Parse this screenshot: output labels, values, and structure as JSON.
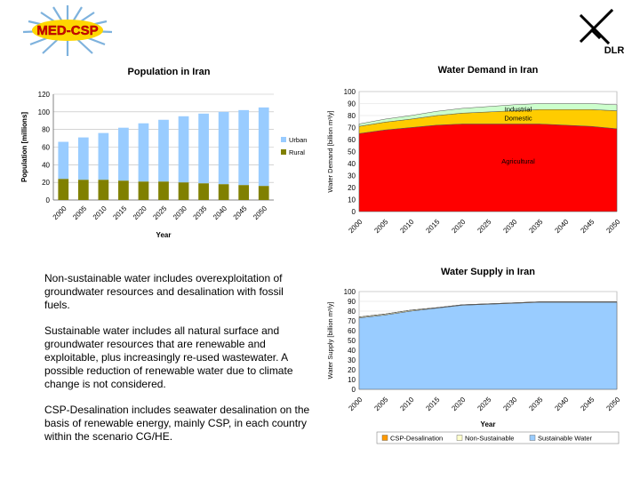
{
  "logos": {
    "left_text": "MED-CSP",
    "right_text": "DLR"
  },
  "notes": [
    "Non-sustainable water includes overexploitation of groundwater resources and desalination with fossil fuels.",
    "Sustainable water includes all natural surface and groundwater resources that are renewable and exploitable, plus increasingly re-used wastewater. A possible reduction of renewable water due to climate change is not considered.",
    "CSP-Desalination includes seawater desalination on the basis of renewable energy, mainly CSP, in each country within the scenario CG/HE."
  ],
  "colors": {
    "urban": "#99CCFF",
    "rural": "#808000",
    "agricultural": "#FF0000",
    "domestic": "#FFCC00",
    "industrial": "#CCFFCC",
    "sustainable": "#99CCFF",
    "non_sustainable": "#FFFFCC",
    "csp": "#FF9900"
  },
  "chart_data": [
    {
      "id": "population",
      "type": "bar",
      "stacked": true,
      "title": "Population in Iran",
      "xlabel": "Year",
      "ylabel": "Population [millions]",
      "ylim": [
        0,
        120
      ],
      "yticks": [
        0,
        20,
        40,
        60,
        80,
        100,
        120
      ],
      "categories": [
        "2000",
        "2005",
        "2010",
        "2015",
        "2020",
        "2025",
        "2030",
        "2035",
        "2040",
        "2045",
        "2050"
      ],
      "series": [
        {
          "name": "Rural",
          "values": [
            24,
            23,
            23,
            22,
            21,
            21,
            20,
            19,
            18,
            17,
            16
          ]
        },
        {
          "name": "Urban",
          "values": [
            42,
            48,
            53,
            60,
            66,
            70,
            75,
            79,
            82,
            85,
            89
          ]
        }
      ],
      "legend": [
        "Urban",
        "Rural"
      ],
      "legend_position": "right"
    },
    {
      "id": "water_demand",
      "type": "area",
      "stacked": true,
      "title": "Water Demand in Iran",
      "ylabel": "Water Demand [billion m³/y]",
      "ylim": [
        0,
        100
      ],
      "yticks": [
        0,
        10,
        20,
        30,
        40,
        50,
        60,
        70,
        80,
        90,
        100
      ],
      "x": [
        "2000",
        "2005",
        "2010",
        "2015",
        "2020",
        "2025",
        "2030",
        "2035",
        "2040",
        "2045",
        "2050"
      ],
      "series": [
        {
          "name": "Agricultural",
          "values": [
            65,
            68,
            70,
            72,
            73,
            73,
            73,
            73,
            72,
            71,
            69
          ]
        },
        {
          "name": "Domestic",
          "values": [
            6,
            6.5,
            7,
            8,
            9,
            10,
            11,
            12,
            13,
            14,
            15
          ]
        },
        {
          "name": "Industrial",
          "values": [
            2,
            2.5,
            3,
            3.5,
            4,
            4.5,
            5,
            5,
            5,
            5,
            5
          ]
        }
      ],
      "annotations": [
        {
          "text": "Industrial",
          "series": "Industrial"
        },
        {
          "text": "Domestic",
          "series": "Domestic"
        },
        {
          "text": "Agricultural",
          "series": "Agricultural"
        }
      ]
    },
    {
      "id": "water_supply",
      "type": "area",
      "stacked": true,
      "title": "Water Supply in Iran",
      "xlabel": "Year",
      "ylabel": "Water Supply [billion m³/y]",
      "ylim": [
        0,
        100
      ],
      "yticks": [
        0,
        10,
        20,
        30,
        40,
        50,
        60,
        70,
        80,
        90,
        100
      ],
      "x": [
        "2000",
        "2005",
        "2010",
        "2015",
        "2020",
        "2025",
        "2030",
        "2035",
        "2040",
        "2045",
        "2050"
      ],
      "series": [
        {
          "name": "Sustainable Water",
          "values": [
            73,
            76,
            80,
            83,
            86,
            87,
            88,
            89,
            89,
            89,
            89
          ]
        },
        {
          "name": "Non-Sustainable",
          "values": [
            1,
            1,
            1,
            0.5,
            0.5,
            0.5,
            0.5,
            0.5,
            0.5,
            0.5,
            0.5
          ]
        },
        {
          "name": "CSP-Desalination",
          "values": [
            0,
            0,
            0,
            0,
            0,
            0,
            0,
            0,
            0,
            0,
            0
          ]
        }
      ],
      "legend": [
        "CSP-Desalination",
        "Non-Sustainable",
        "Sustainable Water"
      ],
      "legend_position": "bottom"
    }
  ]
}
